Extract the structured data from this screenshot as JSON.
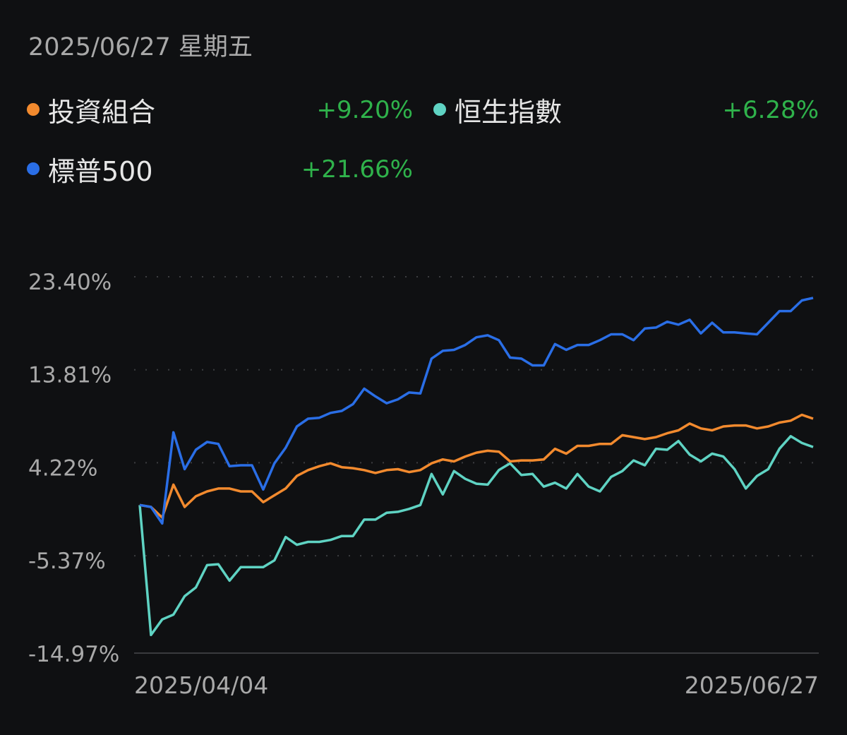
{
  "header": {
    "date": "2025/06/27 星期五"
  },
  "legend": [
    {
      "name": "投資組合",
      "value": "+9.20%",
      "color": "#f28a2e"
    },
    {
      "name": "恒生指數",
      "value": "+6.28%",
      "color": "#5fd3c3"
    },
    {
      "name": "標普500",
      "value": "+21.66%",
      "color": "#2a6ee6"
    }
  ],
  "value_color": "#2fb24b",
  "chart_data": {
    "type": "line",
    "ylim": [
      -14.97,
      23.4
    ],
    "yticks": [
      "23.40%",
      "13.81%",
      "4.22%",
      "-5.37%",
      "-14.97%"
    ],
    "ytick_values": [
      23.4,
      13.81,
      4.22,
      -5.37,
      -14.97
    ],
    "xticks": [
      "2025/04/04",
      "2025/06/27"
    ],
    "x_range": [
      "2025/04/04",
      "2025/06/27"
    ],
    "grid": "horizontal dotted",
    "legend_placement": "top",
    "series": [
      {
        "name": "投資組合",
        "color": "#f28a2e",
        "values": [
          0.3,
          0.1,
          -1.0,
          2.4,
          0.1,
          1.2,
          1.7,
          2.0,
          2.0,
          1.7,
          1.7,
          0.6,
          1.3,
          2.0,
          3.3,
          3.9,
          4.3,
          4.6,
          4.2,
          4.1,
          3.9,
          3.6,
          3.9,
          4.0,
          3.7,
          3.9,
          4.6,
          5.0,
          4.8,
          5.3,
          5.7,
          5.9,
          5.8,
          4.8,
          4.9,
          4.9,
          5.0,
          6.1,
          5.6,
          6.4,
          6.4,
          6.6,
          6.6,
          7.5,
          7.3,
          7.1,
          7.3,
          7.7,
          8.0,
          8.7,
          8.2,
          8.0,
          8.4,
          8.5,
          8.5,
          8.2,
          8.4,
          8.8,
          9.0,
          9.6,
          9.2
        ]
      },
      {
        "name": "恒生指數",
        "color": "#5fd3c3",
        "values": [
          0.3,
          -13.1,
          -11.5,
          -11.0,
          -9.1,
          -8.2,
          -5.9,
          -5.8,
          -7.5,
          -6.1,
          -6.1,
          -6.1,
          -5.4,
          -3.0,
          -3.8,
          -3.5,
          -3.5,
          -3.3,
          -2.9,
          -2.9,
          -1.2,
          -1.2,
          -0.5,
          -0.4,
          -0.1,
          0.3,
          3.5,
          1.4,
          3.8,
          3.0,
          2.5,
          2.4,
          3.9,
          4.6,
          3.4,
          3.5,
          2.2,
          2.6,
          2.0,
          3.5,
          2.2,
          1.7,
          3.2,
          3.8,
          4.9,
          4.4,
          6.1,
          6.0,
          6.9,
          5.5,
          4.8,
          5.6,
          5.3,
          4.0,
          2.0,
          3.3,
          4.0,
          6.1,
          7.4,
          6.7,
          6.28
        ]
      },
      {
        "name": "標普500",
        "color": "#2a6ee6",
        "values": [
          0.3,
          0.1,
          -1.6,
          7.8,
          4.0,
          6.0,
          6.8,
          6.6,
          4.3,
          4.4,
          4.4,
          1.9,
          4.6,
          6.2,
          8.4,
          9.2,
          9.3,
          9.8,
          10.0,
          10.7,
          12.3,
          11.5,
          10.8,
          11.2,
          11.9,
          11.8,
          15.4,
          16.2,
          16.3,
          16.8,
          17.6,
          17.8,
          17.3,
          15.5,
          15.4,
          14.7,
          14.7,
          16.9,
          16.3,
          16.8,
          16.8,
          17.3,
          17.9,
          17.9,
          17.3,
          18.5,
          18.6,
          19.2,
          18.9,
          19.4,
          18.0,
          19.1,
          18.1,
          18.1,
          18.0,
          17.9,
          19.1,
          20.3,
          20.3,
          21.4,
          21.66
        ]
      }
    ]
  }
}
